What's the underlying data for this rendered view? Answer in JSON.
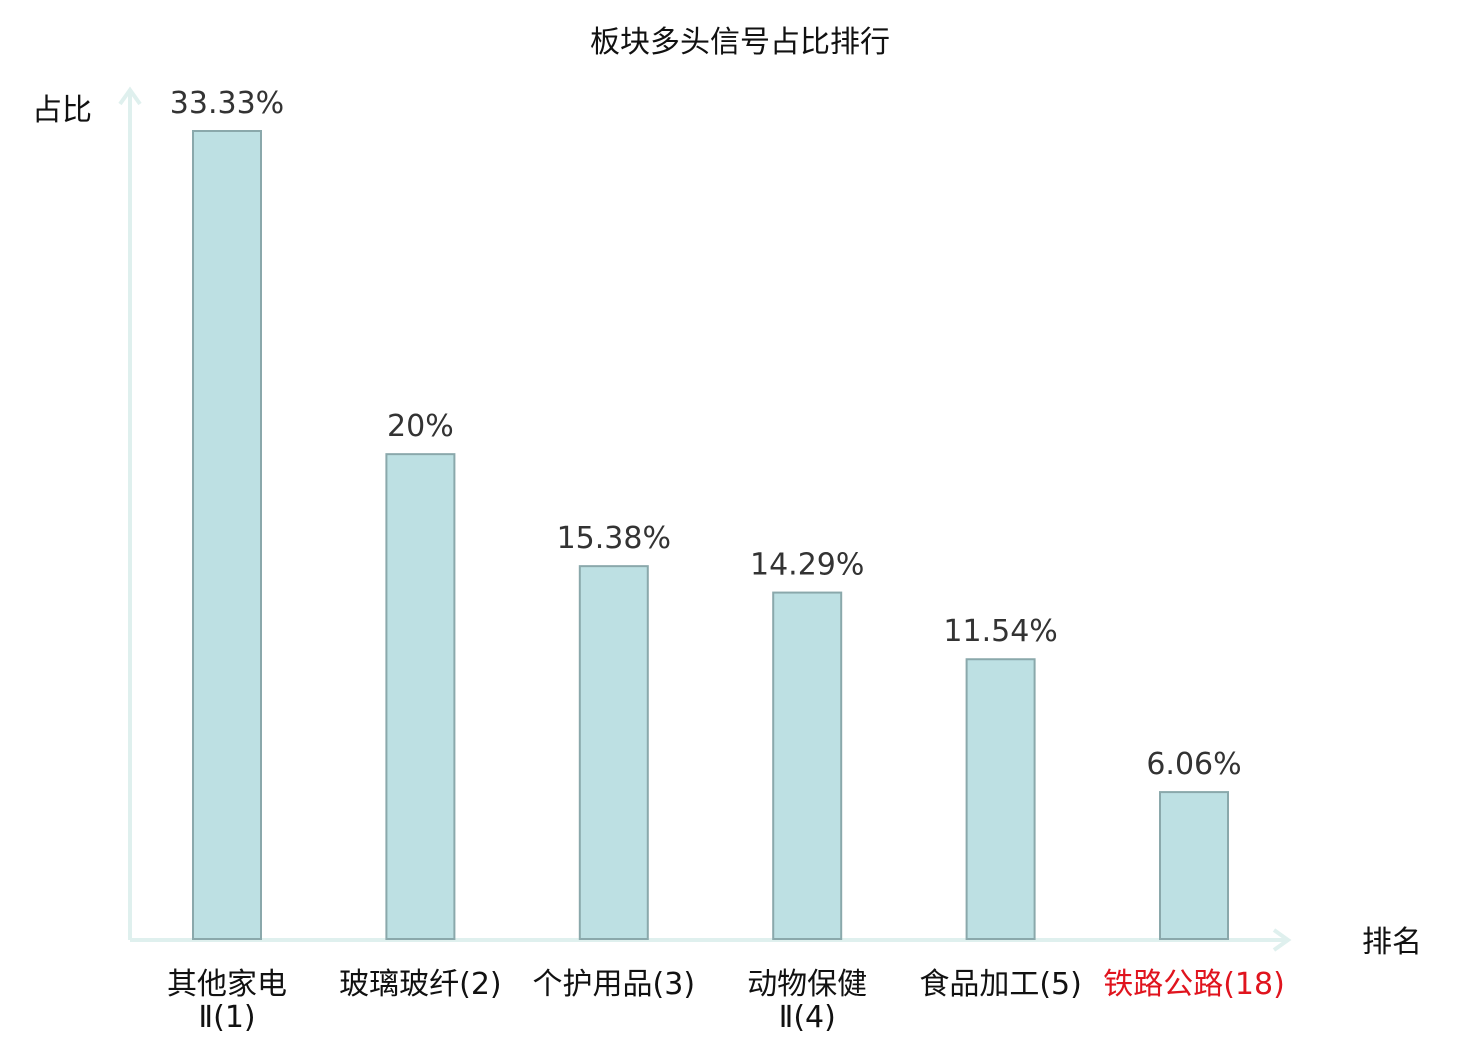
{
  "chart_data": {
    "type": "bar",
    "title": "板块多头信号占比排行",
    "ylabel": "占比",
    "xlabel": "排名",
    "ylim": [
      0,
      35
    ],
    "grid": false,
    "categories": [
      {
        "name": [
          "其他家电",
          "Ⅱ(1)"
        ],
        "highlight": false
      },
      {
        "name": [
          "玻璃玻纤(2)"
        ],
        "highlight": false
      },
      {
        "name": [
          "个护用品(3)"
        ],
        "highlight": false
      },
      {
        "name": [
          "动物保健",
          "Ⅱ(4)"
        ],
        "highlight": false
      },
      {
        "name": [
          "食品加工(5)"
        ],
        "highlight": false
      },
      {
        "name": [
          "铁路公路(18)"
        ],
        "highlight": true
      }
    ],
    "values": [
      33.33,
      20,
      15.38,
      14.29,
      11.54,
      6.06
    ],
    "value_labels": [
      "33.33%",
      "20%",
      "15.38%",
      "14.29%",
      "11.54%",
      "6.06%"
    ],
    "colors": {
      "bar_fill": "#bde0e3",
      "bar_stroke": "#8aa8ab",
      "axis": "#dff0ee",
      "highlight_text": "#e0141e"
    }
  }
}
